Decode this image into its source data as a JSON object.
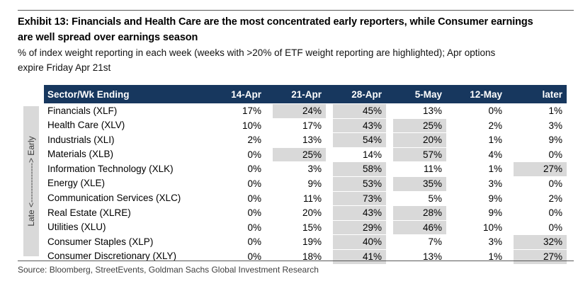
{
  "exhibit": {
    "title_line1": "Exhibit 13: Financials and Health Care are the most concentrated early reporters, while Consumer earnings",
    "title_line2": "are well spread over earnings season",
    "subtitle_line1": "% of index weight reporting in each week (weeks with >20% of ETF weight reporting are highlighted); Apr options",
    "subtitle_line2": "expire Friday Apr 21st",
    "side_axis_label": "Late <--------------> Early",
    "source": "Source: Bloomberg, StreetEvents, Goldman Sachs Global Investment Research"
  },
  "colors": {
    "header_bg": "#17375E",
    "highlight": "#D9D9D9",
    "sidebar_bg": "#D9D9D9",
    "rule": "#595959"
  },
  "chart_data": {
    "type": "table",
    "title": "Exhibit 13: Financials and Health Care are the most concentrated early reporters, while Consumer earnings are well spread over earnings season",
    "subtitle": "% of index weight reporting in each week (weeks with >20% of ETF weight reporting are highlighted); Apr options expire Friday Apr 21st",
    "highlight_rule": "weeks with >20% of ETF weight reporting are highlighted",
    "columns": [
      "Sector/Wk Ending",
      "14-Apr",
      "21-Apr",
      "28-Apr",
      "5-May",
      "12-May",
      "later"
    ],
    "rows": [
      {
        "sector": "Financials (XLF)",
        "values": [
          "17%",
          "24%",
          "45%",
          "13%",
          "0%",
          "1%"
        ],
        "highlighted": [
          false,
          true,
          true,
          false,
          false,
          false
        ]
      },
      {
        "sector": "Health Care (XLV)",
        "values": [
          "10%",
          "17%",
          "43%",
          "25%",
          "2%",
          "3%"
        ],
        "highlighted": [
          false,
          false,
          true,
          true,
          false,
          false
        ]
      },
      {
        "sector": "Industrials (XLI)",
        "values": [
          "2%",
          "13%",
          "54%",
          "20%",
          "1%",
          "9%"
        ],
        "highlighted": [
          false,
          false,
          true,
          true,
          false,
          false
        ]
      },
      {
        "sector": "Materials (XLB)",
        "values": [
          "0%",
          "25%",
          "14%",
          "57%",
          "4%",
          "0%"
        ],
        "highlighted": [
          false,
          true,
          false,
          true,
          false,
          false
        ]
      },
      {
        "sector": "Information Technology (XLK)",
        "values": [
          "0%",
          "3%",
          "58%",
          "11%",
          "1%",
          "27%"
        ],
        "highlighted": [
          false,
          false,
          true,
          false,
          false,
          true
        ]
      },
      {
        "sector": "Energy (XLE)",
        "values": [
          "0%",
          "9%",
          "53%",
          "35%",
          "3%",
          "0%"
        ],
        "highlighted": [
          false,
          false,
          true,
          true,
          false,
          false
        ]
      },
      {
        "sector": "Communication Services (XLC)",
        "values": [
          "0%",
          "11%",
          "73%",
          "5%",
          "9%",
          "2%"
        ],
        "highlighted": [
          false,
          false,
          true,
          false,
          false,
          false
        ]
      },
      {
        "sector": "Real Estate (XLRE)",
        "values": [
          "0%",
          "20%",
          "43%",
          "28%",
          "9%",
          "0%"
        ],
        "highlighted": [
          false,
          false,
          true,
          true,
          false,
          false
        ]
      },
      {
        "sector": "Utilities (XLU)",
        "values": [
          "0%",
          "15%",
          "29%",
          "46%",
          "10%",
          "0%"
        ],
        "highlighted": [
          false,
          false,
          true,
          true,
          false,
          false
        ]
      },
      {
        "sector": "Consumer Staples (XLP)",
        "values": [
          "0%",
          "19%",
          "40%",
          "7%",
          "3%",
          "32%"
        ],
        "highlighted": [
          false,
          false,
          true,
          false,
          false,
          true
        ]
      },
      {
        "sector": "Consumer Discretionary (XLY)",
        "values": [
          "0%",
          "18%",
          "41%",
          "13%",
          "1%",
          "27%"
        ],
        "highlighted": [
          false,
          false,
          true,
          false,
          false,
          true
        ]
      }
    ]
  }
}
